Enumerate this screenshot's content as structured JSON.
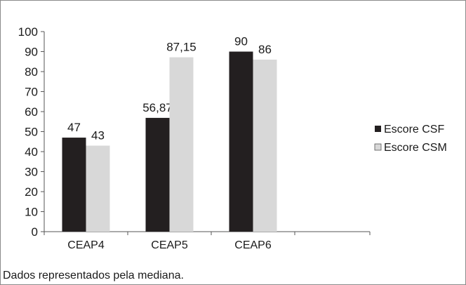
{
  "chart_data": {
    "type": "bar",
    "categories": [
      "CEAP4",
      "CEAP5",
      "CEAP6"
    ],
    "series": [
      {
        "name": "Escore CSF",
        "color": "#231f20",
        "values": [
          47,
          56.87,
          90
        ],
        "labels": [
          "47",
          "56,87",
          "90"
        ]
      },
      {
        "name": "Escore CSM",
        "color": "#d8d8d8",
        "values": [
          43,
          87.15,
          86
        ],
        "labels": [
          "43",
          "87,15",
          "86"
        ]
      }
    ],
    "yticks": [
      "0",
      "10",
      "20",
      "30",
      "40",
      "50",
      "60",
      "70",
      "80",
      "90",
      "100"
    ],
    "ylim": [
      0,
      100
    ],
    "legend_position": "right",
    "grid": false
  },
  "footnote": "Dados representados pela mediana."
}
